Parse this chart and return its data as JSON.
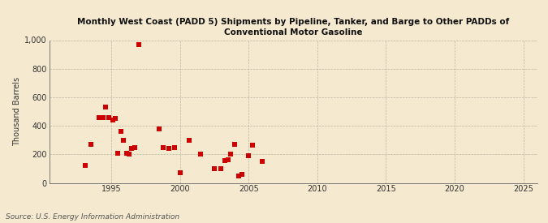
{
  "title": "Monthly West Coast (PADD 5) Shipments by Pipeline, Tanker, and Barge to Other PADDs of\nConventional Motor Gasoline",
  "ylabel": "Thousand Barrels",
  "source": "Source: U.S. Energy Information Administration",
  "background_color": "#f5e9d0",
  "plot_bg_color": "#f5e9d0",
  "marker_color": "#cc0000",
  "marker_size": 16,
  "xlim": [
    1990.5,
    2026
  ],
  "ylim": [
    0,
    1000
  ],
  "yticks": [
    0,
    200,
    400,
    600,
    800,
    1000
  ],
  "xticks": [
    1995,
    2000,
    2005,
    2010,
    2015,
    2020,
    2025
  ],
  "data_x": [
    1993.1,
    1993.5,
    1994.1,
    1994.4,
    1994.6,
    1994.8,
    1995.1,
    1995.3,
    1995.5,
    1995.7,
    1995.9,
    1996.1,
    1996.3,
    1996.5,
    1996.7,
    1997.0,
    1998.5,
    1998.8,
    1999.2,
    1999.6,
    2000.0,
    2000.7,
    2001.5,
    2002.5,
    2003.0,
    2003.3,
    2003.5,
    2003.7,
    2004.0,
    2004.3,
    2004.5,
    2005.0,
    2005.3,
    2006.0
  ],
  "data_y": [
    120,
    270,
    460,
    460,
    530,
    460,
    440,
    450,
    210,
    360,
    300,
    210,
    200,
    240,
    250,
    970,
    380,
    250,
    240,
    250,
    70,
    300,
    200,
    100,
    100,
    155,
    160,
    200,
    270,
    50,
    60,
    190,
    265,
    150
  ],
  "title_fontsize": 7.5,
  "ylabel_fontsize": 7,
  "tick_fontsize": 7,
  "source_fontsize": 6.5
}
